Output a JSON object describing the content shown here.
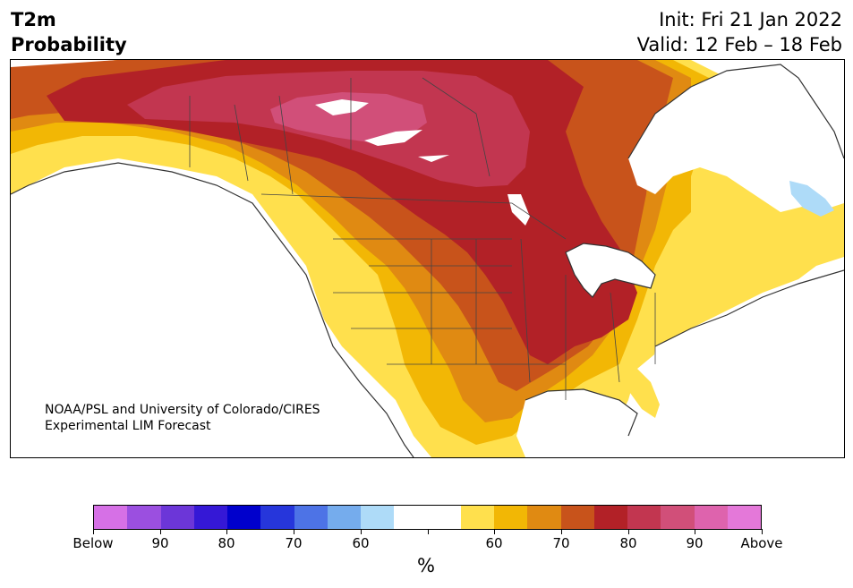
{
  "header": {
    "variable": "T2m",
    "product": "Probability",
    "init": "Init: Fri 21 Jan 2022",
    "valid": "Valid: 12 Feb – 18 Feb"
  },
  "credit": {
    "line1": "NOAA/PSL and University of Colorado/CIRES",
    "line2": "Experimental LIM Forecast"
  },
  "colorbar": {
    "colors": [
      "#d670e6",
      "#9b4fe0",
      "#6c36d8",
      "#3518d6",
      "#0000cc",
      "#2636db",
      "#4d73e6",
      "#75aced",
      "#aedbf8",
      "#ffffff",
      "#ffffff",
      "#ffe04d",
      "#f2b705",
      "#e08a12",
      "#c8531b",
      "#b22127",
      "#c23650",
      "#d14f79",
      "#de63ad",
      "#e478d9"
    ],
    "tick_labels": [
      "Below",
      "90",
      "80",
      "70",
      "60",
      "",
      "60",
      "70",
      "80",
      "90",
      "Above"
    ],
    "unit": "%"
  },
  "map_colors": {
    "above_60": "#ffe04d",
    "above_70": "#f2b705",
    "above_75": "#e08a12",
    "above_80": "#c8531b",
    "above_85": "#b22127",
    "above_90": "#c23650",
    "above_95": "#d14f79",
    "below_60": "#aedbf8",
    "neutral": "#ffffff"
  }
}
